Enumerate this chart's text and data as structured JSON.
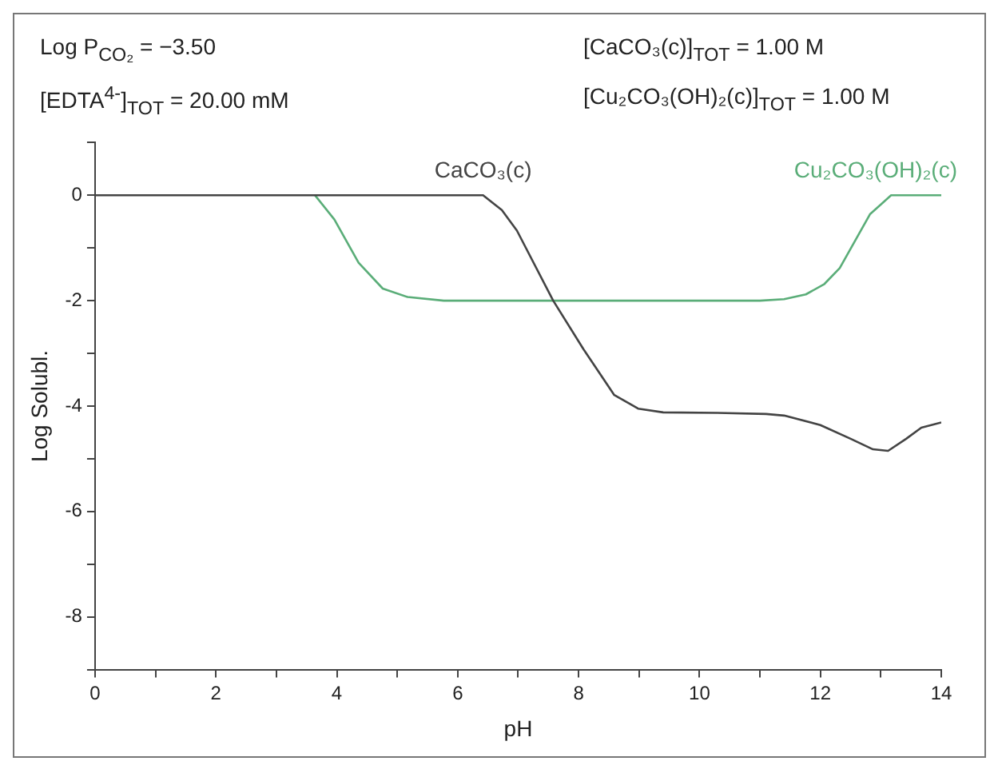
{
  "chart_data": {
    "type": "line",
    "xlabel": "pH",
    "ylabel": "Log Solubl.",
    "annotations": [
      "Log P$_{CO₂}$ = −3.50",
      "[CaCO₃(c)]$_{TOT}$ = 1.00 M",
      "[EDTA$^{4-}$]$_{TOT}$ = 20.00 mM",
      "[Cu₂CO₃(OH)₂(c)]$_{TOT}$ = 1.00 M"
    ],
    "xlim": [
      0,
      14
    ],
    "xticks": [
      0,
      {
        "value": 1,
        "label": null
      },
      2,
      {
        "value": 3,
        "label": null
      },
      4,
      {
        "value": 5,
        "label": null
      },
      6,
      {
        "value": 7,
        "label": null
      },
      8,
      {
        "value": 9,
        "label": null
      },
      10,
      {
        "value": 11,
        "label": null
      },
      12,
      {
        "value": 13,
        "label": null
      },
      14
    ],
    "ylim": [
      -9,
      1
    ],
    "yticks": [
      {
        "value": -9,
        "label": null
      },
      -8,
      {
        "value": -7,
        "label": null
      },
      -6,
      {
        "value": -5,
        "label": null
      },
      -4,
      {
        "value": -3,
        "label": null
      },
      -2,
      {
        "value": -1,
        "label": null
      },
      0,
      {
        "value": 1,
        "label": null
      }
    ],
    "marker": "none",
    "line_style": "solid",
    "series": [
      {
        "name": "CaCO₃(c)",
        "color": "#444444",
        "x": [
          0,
          6.42,
          6.73,
          6.98,
          7.58,
          8.08,
          8.59,
          8.99,
          9.4,
          10.3,
          11.1,
          11.4,
          12.0,
          12.5,
          12.87,
          13.12,
          13.42,
          13.67,
          14
        ],
        "values": [
          0,
          0,
          -0.28,
          -0.67,
          -2,
          -2.92,
          -3.79,
          -4.05,
          -4.12,
          -4.13,
          -4.15,
          -4.18,
          -4.36,
          -4.62,
          -4.82,
          -4.85,
          -4.62,
          -4.41,
          -4.31
        ]
      },
      {
        "name": "Cu₂CO₃(OH)₂(c)",
        "color": "#5aad78",
        "x": [
          3.64,
          3.96,
          4.36,
          4.76,
          5.17,
          5.77,
          11.0,
          11.4,
          11.76,
          12.06,
          12.32,
          12.82,
          13.17,
          14
        ],
        "values": [
          0,
          -0.46,
          -1.28,
          -1.77,
          -1.93,
          -2,
          -2,
          -1.97,
          -1.88,
          -1.69,
          -1.38,
          -0.36,
          0,
          0
        ]
      }
    ]
  }
}
